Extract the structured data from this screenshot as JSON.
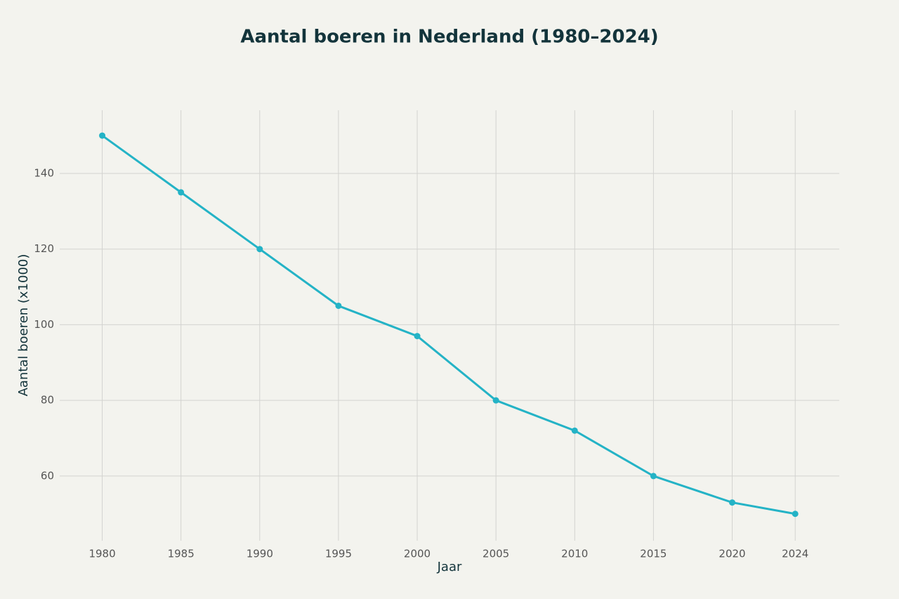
{
  "chart_data": {
    "type": "line",
    "title": "Aantal boeren in Nederland (1980–2024)",
    "x_label": "Jaar",
    "y_label": "Aantal boeren (x1000)",
    "x": [
      1980,
      1985,
      1990,
      1995,
      2000,
      2005,
      2010,
      2015,
      2020,
      2024
    ],
    "series": [
      {
        "name": "Aantal boeren",
        "color": "#24b3c6",
        "values": [
          150,
          135,
          120,
          105,
          97,
          80,
          72,
          60,
          53,
          50
        ]
      }
    ],
    "xlim": [
      1977.3,
      2026.8
    ],
    "xticks": [
      1980,
      1985,
      1990,
      1995,
      2000,
      2005,
      2010,
      2015,
      2020,
      2024
    ],
    "ylim": [
      42.9,
      156.7
    ],
    "yticks": [
      60,
      80,
      100,
      120,
      140
    ],
    "grid": true,
    "legend": false
  }
}
